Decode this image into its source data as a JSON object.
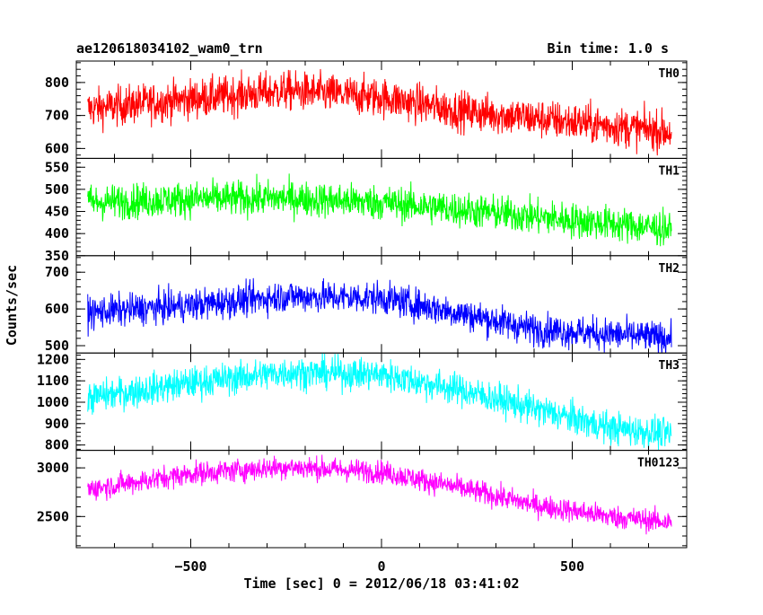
{
  "header": {
    "title": "ae120618034102_wam0_trn",
    "bin_time": "Bin time: 1.0 s"
  },
  "axes": {
    "ylabel": "Counts/sec",
    "xlabel": "Time [sec] 0 = 2012/06/18 03:41:02"
  },
  "chart_data": {
    "type": "line",
    "title": "ae120618034102_wam0_trn",
    "subtitle": "Bin time: 1.0 s",
    "xlabel": "Time [sec] 0 = 2012/06/18 03:41:02",
    "ylabel": "Counts/sec",
    "x_start": -770,
    "x_end": 760,
    "x_step": 1,
    "xlim": [
      -800,
      800
    ],
    "xticks": [
      -500,
      0,
      500
    ],
    "grid": false,
    "series": [
      {
        "name": "TH0",
        "color": "#ff0000",
        "ylim": [
          570,
          865
        ],
        "yticks": [
          600,
          700,
          800
        ],
        "trend": [
          [
            -770,
            720
          ],
          [
            -500,
            750
          ],
          [
            -250,
            775
          ],
          [
            0,
            755
          ],
          [
            200,
            715
          ],
          [
            500,
            680
          ],
          [
            760,
            650
          ]
        ],
        "noise": 30
      },
      {
        "name": "TH1",
        "color": "#00ff00",
        "ylim": [
          350,
          570
        ],
        "yticks": [
          350,
          400,
          450,
          500,
          550
        ],
        "trend": [
          [
            -770,
            470
          ],
          [
            -500,
            478
          ],
          [
            -250,
            480
          ],
          [
            0,
            470
          ],
          [
            200,
            455
          ],
          [
            500,
            430
          ],
          [
            760,
            410
          ]
        ],
        "noise": 20
      },
      {
        "name": "TH2",
        "color": "#0000ff",
        "ylim": [
          480,
          745
        ],
        "yticks": [
          500,
          600,
          700
        ],
        "trend": [
          [
            -770,
            590
          ],
          [
            -500,
            610
          ],
          [
            -250,
            635
          ],
          [
            0,
            630
          ],
          [
            200,
            590
          ],
          [
            400,
            545
          ],
          [
            760,
            520
          ]
        ],
        "noise": 22
      },
      {
        "name": "TH3",
        "color": "#00ffff",
        "ylim": [
          775,
          1230
        ],
        "yticks": [
          800,
          900,
          1000,
          1100,
          1200
        ],
        "trend": [
          [
            -770,
            1020
          ],
          [
            -500,
            1090
          ],
          [
            -250,
            1140
          ],
          [
            0,
            1130
          ],
          [
            200,
            1060
          ],
          [
            400,
            970
          ],
          [
            600,
            880
          ],
          [
            760,
            850
          ]
        ],
        "noise": 38
      },
      {
        "name": "TH0123",
        "color": "#ff00ff",
        "ylim": [
          2180,
          3180
        ],
        "yticks": [
          2500,
          3000
        ],
        "trend": [
          [
            -770,
            2780
          ],
          [
            -500,
            2940
          ],
          [
            -250,
            3010
          ],
          [
            0,
            2960
          ],
          [
            200,
            2800
          ],
          [
            400,
            2620
          ],
          [
            600,
            2500
          ],
          [
            760,
            2440
          ]
        ],
        "noise": 60
      }
    ]
  }
}
